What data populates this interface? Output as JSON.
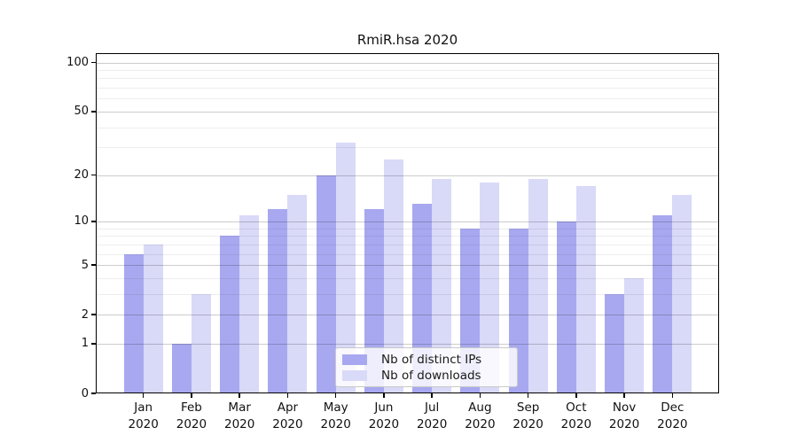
{
  "title": "RmiR.hsa 2020",
  "legend": {
    "items": [
      {
        "label": "Nb of distinct IPs",
        "color": "#a8a8f0"
      },
      {
        "label": "Nb of downloads",
        "color": "#d9d9f8"
      }
    ]
  },
  "chart_data": {
    "type": "bar",
    "title": "RmiR.hsa 2020",
    "months": [
      "Jan",
      "Feb",
      "Mar",
      "Apr",
      "May",
      "Jun",
      "Jul",
      "Aug",
      "Sep",
      "Oct",
      "Nov",
      "Dec"
    ],
    "year": "2020",
    "series": [
      {
        "name": "Nb of distinct IPs",
        "color": "#a8a8f0",
        "values": [
          6,
          1,
          8,
          12,
          20,
          12,
          13,
          9,
          9,
          10,
          3,
          11
        ]
      },
      {
        "name": "Nb of downloads",
        "color": "#d9d9f8",
        "values": [
          7,
          3,
          11,
          15,
          32,
          25,
          19,
          18,
          19,
          17,
          4,
          15
        ]
      }
    ],
    "xlabel": "",
    "ylabel": "",
    "y_axis": {
      "scale": "log10(value+1)",
      "tick_labels": [
        "0",
        "1",
        "2",
        "5",
        "10",
        "20",
        "50",
        "100"
      ],
      "major_ticks": [
        0,
        1,
        2,
        5,
        10,
        20,
        50,
        100
      ],
      "minor_gridlines": [
        3,
        4,
        6,
        7,
        8,
        9,
        30,
        40,
        60,
        70,
        80,
        90
      ],
      "ylim": [
        0,
        114
      ]
    },
    "grid": true,
    "legend_position": "inside-lower-center"
  }
}
